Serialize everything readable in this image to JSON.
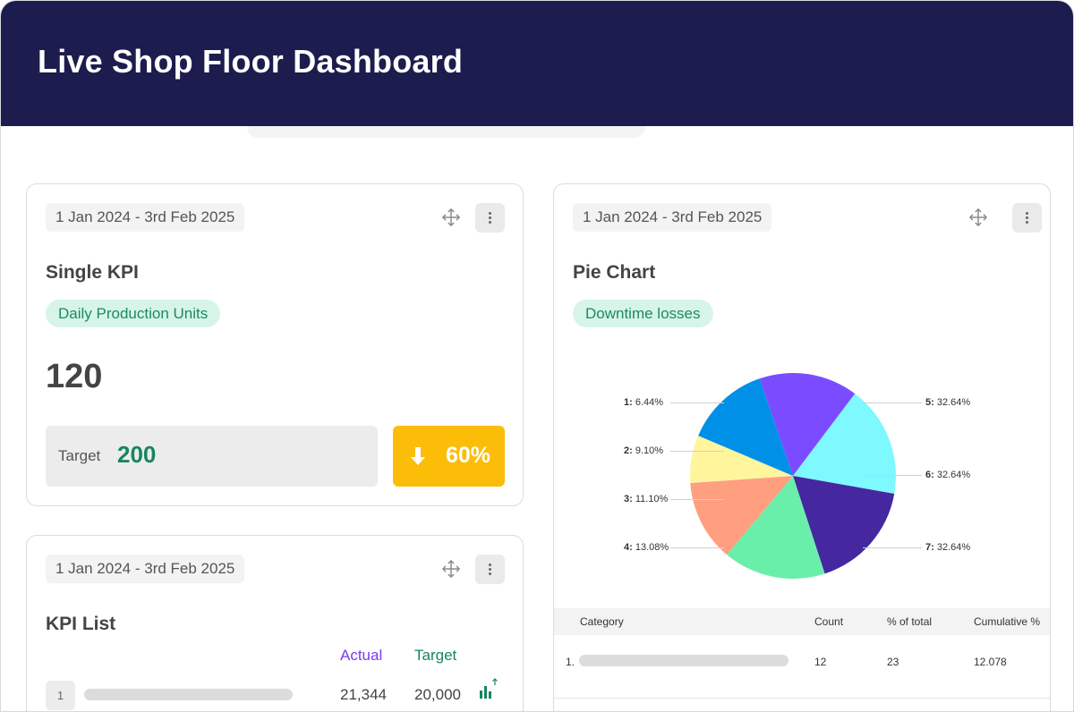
{
  "header": {
    "title": "Live Shop Floor Dashboard"
  },
  "single_kpi": {
    "date_range": "1 Jan 2024 - 3rd Feb 2025",
    "title": "Single KPI",
    "metric": "Daily Production Units",
    "value": "120",
    "target_label": "Target",
    "target_value": "200",
    "delta": "60%",
    "delta_direction": "down",
    "delta_color": "#fbbd08"
  },
  "kpi_list": {
    "date_range": "1 Jan 2024 - 3rd Feb 2025",
    "title": "KPI List",
    "col_actual": "Actual",
    "col_target": "Target",
    "rows": [
      {
        "index": "1",
        "actual": "21,344",
        "target": "20,000",
        "trend_icon": "bar-chart-up-icon"
      }
    ]
  },
  "pie_card": {
    "date_range": "1 Jan 2024 - 3rd Feb 2025",
    "title": "Pie Chart",
    "metric": "Downtime losses",
    "table": {
      "headers": [
        "Category",
        "Count",
        "% of total",
        "Cumulative %"
      ],
      "rows": [
        {
          "index": "1.",
          "count": "12",
          "pct": "23",
          "cum": "12.078"
        }
      ]
    }
  },
  "chart_data": {
    "type": "pie",
    "slices": [
      {
        "id": "1",
        "label": "1: 6.44%",
        "value": 6.44,
        "color": "#0090e8"
      },
      {
        "id": "2",
        "label": "2: 9.10%",
        "value": 9.1,
        "color": "#fff59d"
      },
      {
        "id": "3",
        "label": "3: 11.10%",
        "value": 11.1,
        "color": "#ff9f80"
      },
      {
        "id": "4",
        "label": "4: 13.08%",
        "value": 13.08,
        "color": "#6aefab"
      },
      {
        "id": "5",
        "label": "5: 32.64%",
        "value": 32.64,
        "color": "#7b4cff"
      },
      {
        "id": "6",
        "label": "6: 32.64%",
        "value": 32.64,
        "color": "#7df9ff"
      },
      {
        "id": "7",
        "label": "7: 32.64%",
        "value": 32.64,
        "color": "#4527a0"
      }
    ],
    "legend": "callout-labels"
  }
}
